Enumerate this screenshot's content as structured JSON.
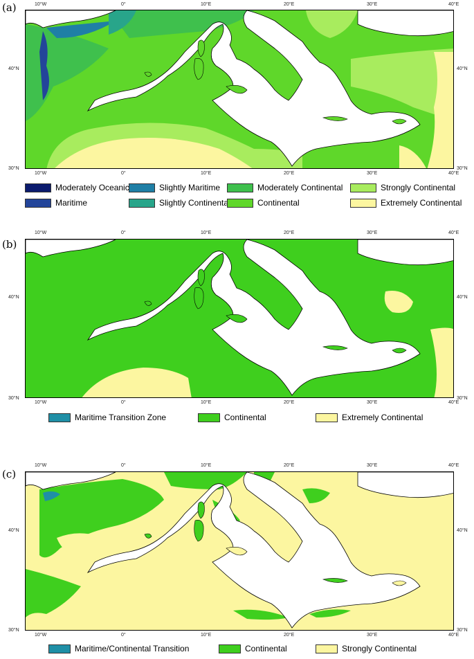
{
  "panels": [
    {
      "label": "(a)",
      "ticks_top": [
        "10°W",
        "0°",
        "10°E",
        "20°E",
        "30°E",
        "40°E"
      ],
      "ticks_bottom": [
        "10°W",
        "0°",
        "10°E",
        "20°E",
        "30°E",
        "40°E"
      ],
      "lat_left": [
        "40°N",
        "30°N"
      ],
      "lat_right": [
        "40°N",
        "30°N"
      ],
      "legend": [
        {
          "label": "Moderately Oceanic",
          "color": "#0b1b6e"
        },
        {
          "label": "Maritime",
          "color": "#23459a"
        },
        {
          "label": "Slightly Maritime",
          "color": "#1f7fa6"
        },
        {
          "label": "Slightly Continental",
          "color": "#28a58a"
        },
        {
          "label": "Moderately Continental",
          "color": "#3fc04d"
        },
        {
          "label": "Continental",
          "color": "#5fd72a"
        },
        {
          "label": "Strongly Continental",
          "color": "#a8ec5e"
        },
        {
          "label": "Extremely Continental",
          "color": "#fcf6a0"
        }
      ]
    },
    {
      "label": "(b)",
      "ticks_top": [
        "10°W",
        "0°",
        "10°E",
        "20°E",
        "30°E",
        "40°E"
      ],
      "ticks_bottom": [
        "10°W",
        "0°",
        "10°E",
        "20°E",
        "30°E",
        "40°E"
      ],
      "lat_left": [
        "40°N",
        "30°N"
      ],
      "lat_right": [
        "40°N",
        "30°N"
      ],
      "legend": [
        {
          "label": "Maritime Transition Zone",
          "color": "#1f8fa6"
        },
        {
          "label": "Continental",
          "color": "#3fcf1e"
        },
        {
          "label": "Extremely Continental",
          "color": "#fcf6a0"
        }
      ]
    },
    {
      "label": "(c)",
      "ticks_top": [
        "10°W",
        "0°",
        "10°E",
        "20°E",
        "30°E",
        "40°E"
      ],
      "ticks_bottom": [
        "10°W",
        "0°",
        "10°E",
        "20°E",
        "30°E",
        "40°E"
      ],
      "lat_left": [
        "40°N",
        "30°N"
      ],
      "lat_right": [
        "40°N",
        "30°N"
      ],
      "legend": [
        {
          "label": "Maritime/Continental Transition",
          "color": "#1f8fa6"
        },
        {
          "label": "Continental",
          "color": "#3fcf1e"
        },
        {
          "label": "Strongly Continental",
          "color": "#fcf6a0"
        }
      ]
    }
  ],
  "colors": {
    "sea": "#ffffff",
    "coast": "#000000"
  }
}
